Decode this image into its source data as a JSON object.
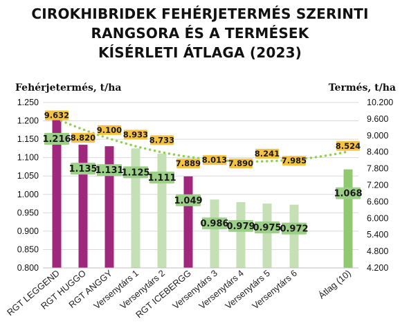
{
  "title_lines": [
    "CIROKHIBRIDEK FEHÉRJETERMÉS SZERINTI",
    "RANGSORA ÉS A TERMÉSEK",
    "KÍSÉRLETI ÁTLAGA (2023)"
  ],
  "colors": {
    "rgt": "#a0287c",
    "competitor": "#c5e0b4",
    "average": "#8fcb6e",
    "label_green": "#9ccf87",
    "label_yellow": "#f6c242",
    "trend": "#92d050"
  },
  "chart_data": {
    "type": "bar",
    "title": "CIROKHIBRIDEK FEHÉRJETERMÉS SZERINTI RANGSORA ÉS A TERMÉSEK KÍSÉRLETI ÁTLAGA (2023)",
    "ylabel": "Fehérjetermés, t/ha",
    "y2label": "Termés, t/ha",
    "ylim": [
      0.8,
      1.25
    ],
    "y2lim": [
      4200,
      10200
    ],
    "yticks": [
      "1.250",
      "1.200",
      "1.150",
      "1.100",
      "1.050",
      "1.000",
      "0.950",
      "0.900",
      "0.850",
      "0.800"
    ],
    "y2ticks": [
      "10.200",
      "9.600",
      "9.000",
      "8.400",
      "7.800",
      "7.200",
      "6.600",
      "6.000",
      "5.400",
      "4.800",
      "4.200"
    ],
    "categories": [
      "RGT LEGGEND",
      "RGT HUGGO",
      "RGT ANGGY",
      "Versenytárs 1",
      "Versenytárs 2",
      "RGT ICEBERGG",
      "Versenytárs 3",
      "Versenytárs 4",
      "Versenytárs 5",
      "Versenytárs 6",
      "Átlag (10)"
    ],
    "series": [
      {
        "axis": "left",
        "values": [
          1.216,
          1.135,
          1.131,
          1.125,
          1.111,
          1.049,
          0.986,
          0.979,
          0.975,
          0.972,
          1.068
        ],
        "labels": [
          "1.216",
          "1.135",
          "1.131",
          "1.125",
          "1.111",
          "1.049",
          "0.986",
          "0.979",
          "0.975",
          "0.972",
          "1.068"
        ],
        "groups": [
          "rgt",
          "rgt",
          "rgt",
          "competitor",
          "competitor",
          "rgt",
          "competitor",
          "competitor",
          "competitor",
          "competitor",
          "average"
        ]
      },
      {
        "axis": "right",
        "values": [
          9632,
          8820,
          9100,
          8933,
          8733,
          7889,
          8013,
          7890,
          8241,
          7985,
          8524
        ],
        "labels": [
          "9.632",
          "8.820",
          "9.100",
          "8.933",
          "8.733",
          "7.889",
          "8.013",
          "7.890",
          "8.241",
          "7.985",
          "8.524"
        ]
      }
    ],
    "trendline": {
      "style": "dotted",
      "type": "polynomial"
    },
    "grid": true,
    "legend": "none"
  }
}
